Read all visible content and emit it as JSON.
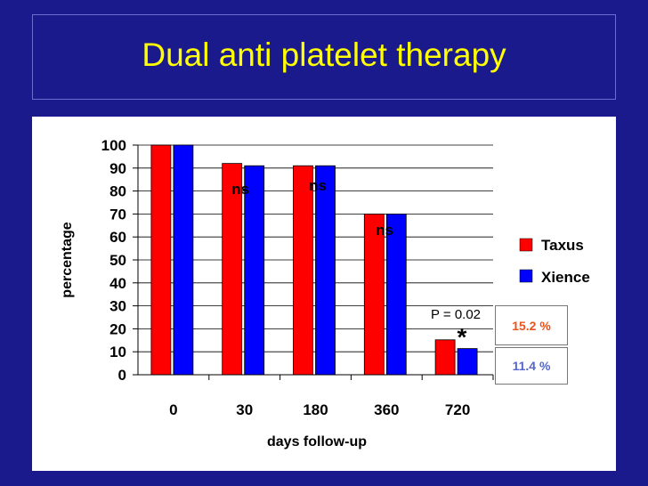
{
  "slide": {
    "title": "Dual anti platelet therapy"
  },
  "colors": {
    "background": "#1a1a8c",
    "title": "#ffff00",
    "taxus": "#ff0000",
    "xience": "#0000ff",
    "taxus_label": "#e8541c",
    "xience_label": "#5566cc"
  },
  "chart_data": {
    "type": "bar",
    "categories": [
      "0",
      "30",
      "180",
      "360",
      "720"
    ],
    "series": [
      {
        "name": "Taxus",
        "values": [
          100,
          92,
          91,
          70,
          15.2
        ]
      },
      {
        "name": "Xience",
        "values": [
          100,
          91,
          91,
          70,
          11.4
        ]
      }
    ],
    "xlabel": "days follow-up",
    "ylabel": "percentage",
    "ylim": [
      0,
      100
    ],
    "yticks": [
      "0",
      "10",
      "20",
      "30",
      "40",
      "50",
      "60",
      "70",
      "80",
      "90",
      "100"
    ],
    "legend_position": "right",
    "annotations": {
      "ns": [
        "ns",
        "ns",
        "ns"
      ],
      "p_value": "P = 0.02",
      "star": "*",
      "taxus_pct": "15.2 %",
      "xience_pct": "11.4 %"
    }
  }
}
